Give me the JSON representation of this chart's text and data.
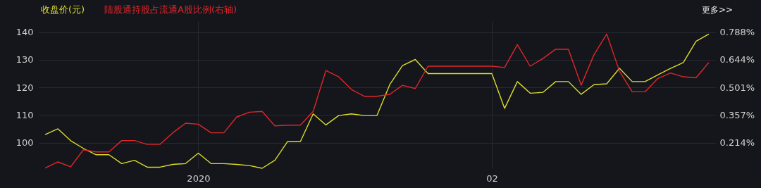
{
  "chart_data": {
    "type": "line",
    "categories": [
      null,
      null,
      null,
      null,
      null,
      null,
      null,
      null,
      null,
      null,
      null,
      null,
      "2020",
      null,
      null,
      null,
      null,
      null,
      null,
      null,
      null,
      null,
      null,
      null,
      null,
      null,
      null,
      null,
      null,
      null,
      null,
      null,
      null,
      null,
      null,
      "02",
      null,
      null,
      null,
      null,
      null,
      null,
      null,
      null,
      null,
      null,
      null,
      null,
      null,
      null,
      null,
      null,
      null
    ],
    "series": [
      {
        "name": "收盘价(元)",
        "color": "#dcdc2c",
        "values": [
          102.9,
          105.0,
          100.7,
          97.9,
          95.6,
          95.6,
          92.4,
          93.6,
          91.1,
          91.1,
          92.1,
          92.4,
          96.2,
          92.4,
          92.4,
          92.1,
          91.7,
          90.7,
          93.6,
          100.4,
          100.4,
          110.4,
          106.4,
          109.8,
          110.4,
          109.8,
          109.8,
          121.0,
          127.9,
          130.1,
          125.0,
          125.0,
          125.0,
          125.0,
          125.0,
          125.0,
          112.4,
          122.1,
          117.9,
          118.2,
          122.1,
          122.1,
          117.5,
          121.0,
          121.3,
          126.9,
          122.1,
          122.1,
          124.5,
          126.9,
          129.0,
          136.7,
          139.3
        ]
      },
      {
        "name": "陆股通持股占流通A股比例(右轴)",
        "color": "#e0262a",
        "axis": "y2",
        "values": [
          0.082,
          0.114,
          0.089,
          0.177,
          0.166,
          0.166,
          0.225,
          0.225,
          0.205,
          0.205,
          0.265,
          0.315,
          0.31,
          0.265,
          0.265,
          0.347,
          0.372,
          0.376,
          0.301,
          0.305,
          0.305,
          0.376,
          0.589,
          0.556,
          0.49,
          0.455,
          0.455,
          0.465,
          0.512,
          0.495,
          0.611,
          0.611,
          0.611,
          0.611,
          0.611,
          0.611,
          0.604,
          0.723,
          0.611,
          0.651,
          0.699,
          0.699,
          0.512,
          0.67,
          0.778,
          0.585,
          0.478,
          0.478,
          0.547,
          0.576,
          0.556,
          0.551,
          0.63
        ]
      }
    ],
    "ylim": [
      90.7,
      144
    ],
    "yticks": [
      100,
      110,
      120,
      130,
      140
    ],
    "y2lim": [
      0.081,
      0.845
    ],
    "y2ticks": [
      {
        "value": 0.214,
        "label": "0.214%"
      },
      {
        "value": 0.357,
        "label": "0.357%"
      },
      {
        "value": 0.501,
        "label": "0.501%"
      },
      {
        "value": 0.644,
        "label": "0.644%"
      },
      {
        "value": 0.788,
        "label": "0.788%"
      }
    ],
    "annotations": [
      "更多>>"
    ],
    "grid": true,
    "legend": "top left",
    "marker": "none",
    "line_style": "solid"
  }
}
